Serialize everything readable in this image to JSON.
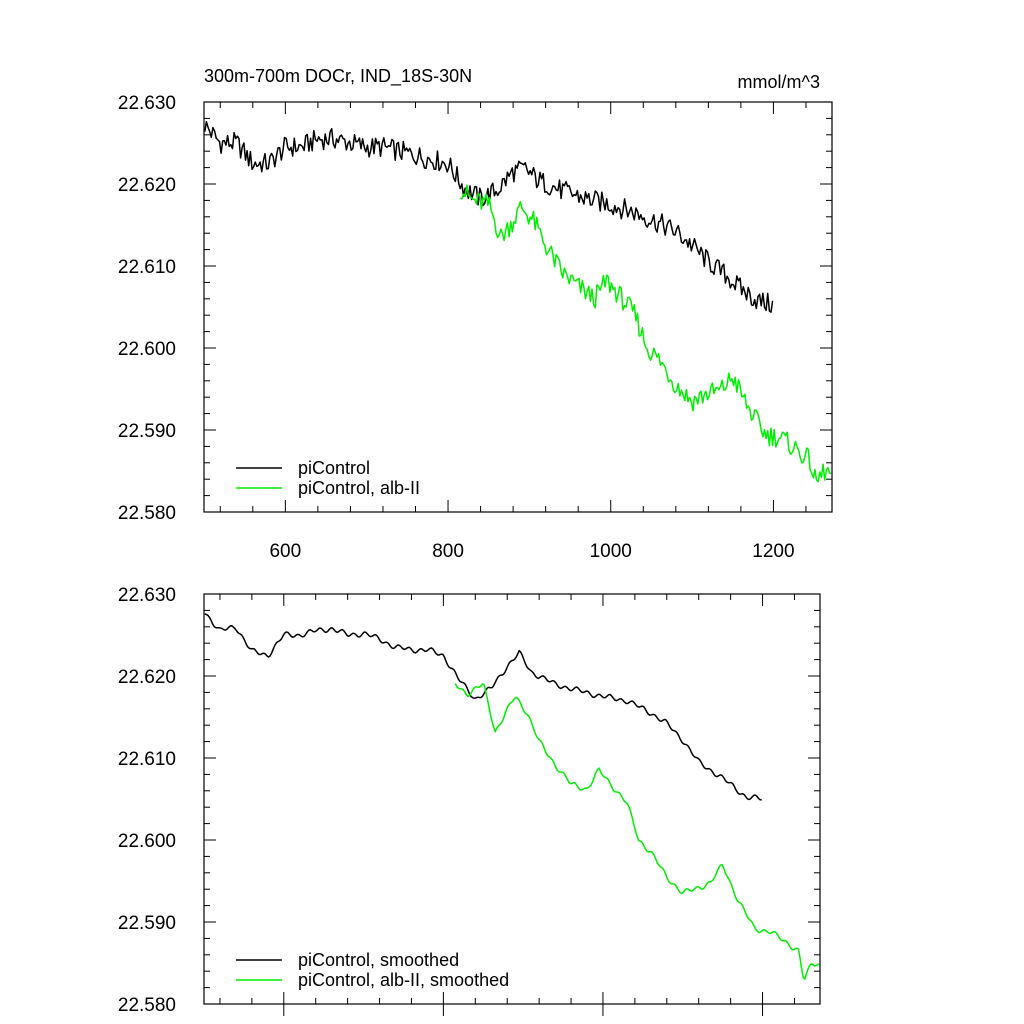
{
  "figure": {
    "title_left": "300m-700m DOCr, IND_18S-30N",
    "title_right": "mmol/m^3"
  },
  "colors": {
    "control": "#000000",
    "alb": "#00ee00",
    "axis": "#000000",
    "background": "#ffffff"
  },
  "chart_data": [
    {
      "type": "line",
      "title": "300m-700m DOCr, IND_18S-30N",
      "units": "mmol/m^3",
      "xlim": [
        500,
        1272
      ],
      "ylim": [
        22.58,
        22.63
      ],
      "xticks": [
        600,
        800,
        1000,
        1200
      ],
      "xtick_labels": [
        "600",
        "800",
        "1000",
        "1200"
      ],
      "yticks": [
        22.58,
        22.59,
        22.6,
        22.61,
        22.62,
        22.63
      ],
      "ytick_labels": [
        "22.580",
        "22.590",
        "22.600",
        "22.610",
        "22.620",
        "22.630"
      ],
      "legend_position": "bottom-left",
      "smoothed": false,
      "series": [
        {
          "name": "piControl",
          "color": "#000000",
          "x_start": 501,
          "x_end": 1200,
          "points": [
            [
              501,
              22.6272
            ],
            [
              520,
              22.625
            ],
            [
              540,
              22.625
            ],
            [
              560,
              22.6225
            ],
            [
              580,
              22.6225
            ],
            [
              600,
              22.6245
            ],
            [
              620,
              22.6245
            ],
            [
              640,
              22.6255
            ],
            [
              660,
              22.6255
            ],
            [
              680,
              22.625
            ],
            [
              700,
              22.6245
            ],
            [
              720,
              22.6245
            ],
            [
              740,
              22.624
            ],
            [
              760,
              22.6235
            ],
            [
              780,
              22.623
            ],
            [
              800,
              22.6225
            ],
            [
              820,
              22.6195
            ],
            [
              840,
              22.6182
            ],
            [
              860,
              22.6192
            ],
            [
              880,
              22.6215
            ],
            [
              895,
              22.6218
            ],
            [
              910,
              22.6205
            ],
            [
              940,
              22.6192
            ],
            [
              970,
              22.6182
            ],
            [
              1000,
              22.6175
            ],
            [
              1030,
              22.6165
            ],
            [
              1060,
              22.6152
            ],
            [
              1080,
              22.6142
            ],
            [
              1100,
              22.6125
            ],
            [
              1120,
              22.6105
            ],
            [
              1140,
              22.609
            ],
            [
              1160,
              22.6072
            ],
            [
              1180,
              22.6058
            ],
            [
              1200,
              22.6052
            ]
          ]
        },
        {
          "name": "piControl, alb-II",
          "color": "#00ee00",
          "x_start": 815,
          "x_end": 1272,
          "points": [
            [
              815,
              22.6195
            ],
            [
              830,
              22.618
            ],
            [
              850,
              22.6175
            ],
            [
              865,
              22.6135
            ],
            [
              880,
              22.6155
            ],
            [
              890,
              22.6172
            ],
            [
              905,
              22.6155
            ],
            [
              920,
              22.6125
            ],
            [
              940,
              22.6092
            ],
            [
              960,
              22.6075
            ],
            [
              980,
              22.606
            ],
            [
              995,
              22.6082
            ],
            [
              1010,
              22.6065
            ],
            [
              1030,
              22.604
            ],
            [
              1045,
              22.6
            ],
            [
              1060,
              22.5985
            ],
            [
              1080,
              22.5955
            ],
            [
              1100,
              22.5935
            ],
            [
              1120,
              22.5945
            ],
            [
              1135,
              22.5948
            ],
            [
              1150,
              22.5965
            ],
            [
              1170,
              22.5925
            ],
            [
              1190,
              22.5895
            ],
            [
              1210,
              22.589
            ],
            [
              1230,
              22.5875
            ],
            [
              1245,
              22.5862
            ],
            [
              1252,
              22.5835
            ],
            [
              1262,
              22.585
            ],
            [
              1272,
              22.5845
            ]
          ]
        }
      ]
    },
    {
      "type": "line",
      "xlim": [
        500,
        1272
      ],
      "ylim": [
        22.58,
        22.63
      ],
      "yticks": [
        22.58,
        22.59,
        22.6,
        22.61,
        22.62,
        22.63
      ],
      "ytick_labels": [
        "22.580",
        "22.590",
        "22.600",
        "22.610",
        "22.620",
        "22.630"
      ],
      "legend_position": "bottom-left",
      "smoothed": true,
      "series": [
        {
          "name": "piControl, smoothed",
          "color": "#000000",
          "x_start": 501,
          "x_end": 1200,
          "points": [
            [
              501,
              22.6278
            ],
            [
              520,
              22.6255
            ],
            [
              540,
              22.626
            ],
            [
              560,
              22.623
            ],
            [
              580,
              22.6225
            ],
            [
              600,
              22.625
            ],
            [
              620,
              22.625
            ],
            [
              640,
              22.6255
            ],
            [
              660,
              22.6258
            ],
            [
              680,
              22.625
            ],
            [
              700,
              22.6252
            ],
            [
              720,
              22.6245
            ],
            [
              740,
              22.6235
            ],
            [
              760,
              22.6232
            ],
            [
              780,
              22.6232
            ],
            [
              800,
              22.6225
            ],
            [
              820,
              22.6195
            ],
            [
              840,
              22.6172
            ],
            [
              860,
              22.6185
            ],
            [
              880,
              22.6212
            ],
            [
              895,
              22.6228
            ],
            [
              910,
              22.6205
            ],
            [
              940,
              22.619
            ],
            [
              970,
              22.6182
            ],
            [
              1000,
              22.6175
            ],
            [
              1030,
              22.617
            ],
            [
              1060,
              22.6155
            ],
            [
              1080,
              22.6142
            ],
            [
              1100,
              22.6122
            ],
            [
              1120,
              22.6095
            ],
            [
              1140,
              22.6082
            ],
            [
              1160,
              22.6068
            ],
            [
              1180,
              22.6052
            ],
            [
              1200,
              22.605
            ]
          ]
        },
        {
          "name": "piControl, alb-II, smoothed",
          "color": "#00ee00",
          "x_start": 815,
          "x_end": 1272,
          "points": [
            [
              815,
              22.619
            ],
            [
              830,
              22.6178
            ],
            [
              850,
              22.619
            ],
            [
              865,
              22.6132
            ],
            [
              880,
              22.6158
            ],
            [
              890,
              22.6175
            ],
            [
              905,
              22.6155
            ],
            [
              920,
              22.612
            ],
            [
              940,
              22.6092
            ],
            [
              960,
              22.6068
            ],
            [
              980,
              22.6062
            ],
            [
              995,
              22.6085
            ],
            [
              1010,
              22.6068
            ],
            [
              1030,
              22.6045
            ],
            [
              1045,
              22.6
            ],
            [
              1060,
              22.5985
            ],
            [
              1080,
              22.5955
            ],
            [
              1100,
              22.5935
            ],
            [
              1120,
              22.5942
            ],
            [
              1135,
              22.5948
            ],
            [
              1150,
              22.597
            ],
            [
              1170,
              22.5925
            ],
            [
              1190,
              22.5892
            ],
            [
              1210,
              22.5888
            ],
            [
              1230,
              22.5875
            ],
            [
              1245,
              22.5865
            ],
            [
              1252,
              22.5828
            ],
            [
              1262,
              22.585
            ],
            [
              1272,
              22.5848
            ]
          ]
        }
      ]
    }
  ]
}
